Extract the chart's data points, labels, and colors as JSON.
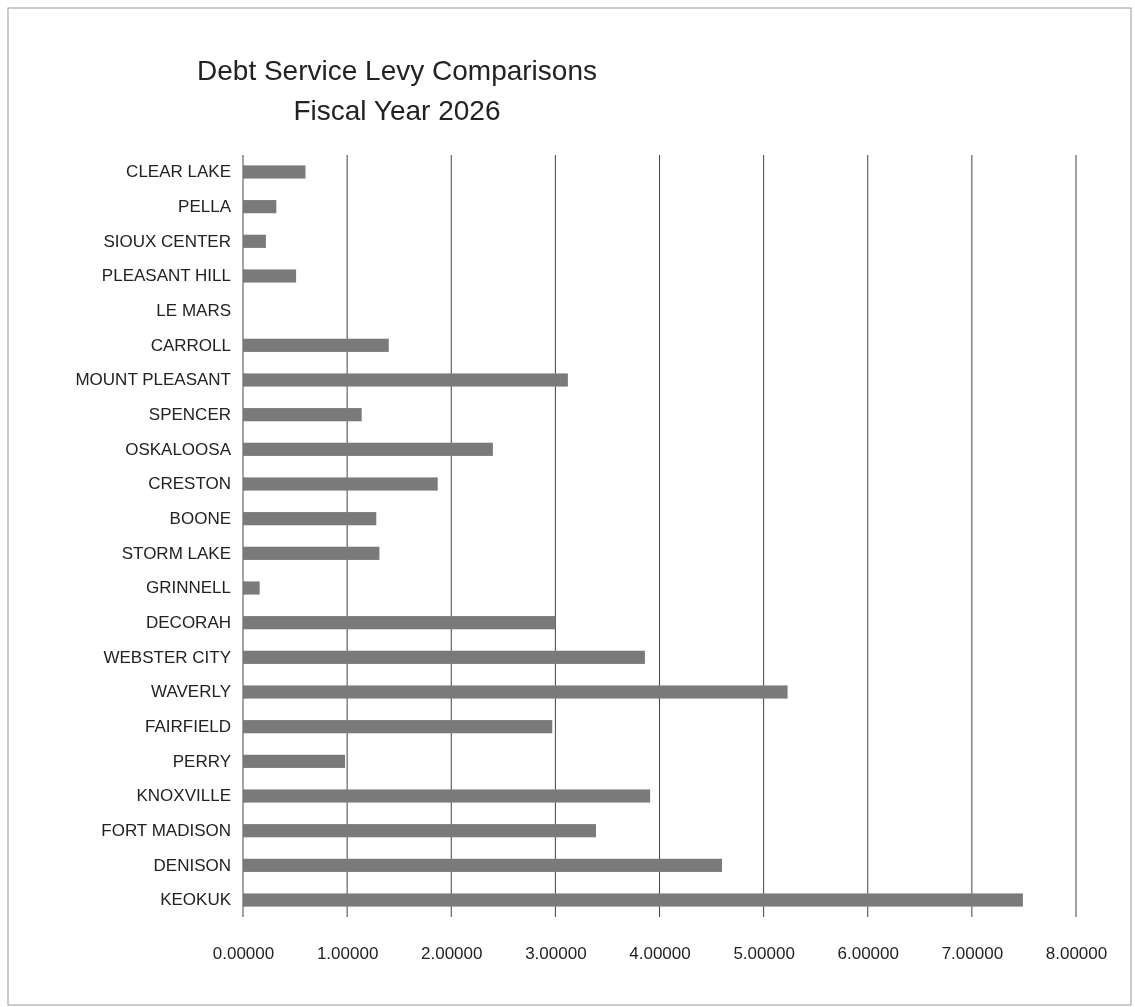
{
  "chart_data": {
    "type": "bar",
    "orientation": "horizontal",
    "title": "Debt Service Levy Comparisons",
    "subtitle": "Fiscal Year 2026",
    "categories": [
      "CLEAR LAKE",
      "PELLA",
      "SIOUX CENTER",
      "PLEASANT HILL",
      "LE MARS",
      "CARROLL",
      "MOUNT PLEASANT",
      "SPENCER",
      "OSKALOOSA",
      "CRESTON",
      "BOONE",
      "STORM LAKE",
      "GRINNELL",
      "DECORAH",
      "WEBSTER CITY",
      "WAVERLY",
      "FAIRFIELD",
      "PERRY",
      "KNOXVILLE",
      "FORT MADISON",
      "DENISON",
      "KEOKUK"
    ],
    "values": [
      0.6,
      0.32,
      0.22,
      0.51,
      0,
      1.4,
      3.12,
      1.14,
      2.4,
      1.87,
      1.28,
      1.31,
      0.16,
      3.0,
      3.86,
      5.23,
      2.97,
      0.98,
      3.91,
      3.39,
      4.6,
      7.49
    ],
    "color": "#7a7a7a",
    "xlim": [
      0,
      8
    ],
    "xticks": [
      {
        "value": 0,
        "label": "0.00000"
      },
      {
        "value": 1,
        "label": "1.00000"
      },
      {
        "value": 2,
        "label": "2.00000"
      },
      {
        "value": 3,
        "label": "3.00000"
      },
      {
        "value": 4,
        "label": "4.00000"
      },
      {
        "value": 5,
        "label": "5.00000"
      },
      {
        "value": 6,
        "label": "6.00000"
      },
      {
        "value": 7,
        "label": "7.00000"
      },
      {
        "value": 8,
        "label": "8.00000"
      }
    ],
    "grid": "x"
  }
}
